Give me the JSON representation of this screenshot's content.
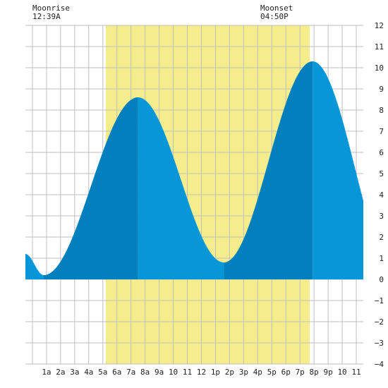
{
  "annotations": {
    "moonrise": {
      "label": "Moonrise",
      "time": "12:39A",
      "hour": 0.65
    },
    "moonset": {
      "label": "Moonset",
      "time": "04:50P",
      "hour": 16.83
    }
  },
  "chart_data": {
    "type": "area",
    "title": "",
    "xlabel": "",
    "ylabel": "",
    "xlim": [
      -0.5,
      23.5
    ],
    "ylim": [
      -4,
      12
    ],
    "grid": true,
    "x_tick_labels": [
      "1a",
      "2a",
      "3a",
      "4a",
      "5a",
      "6a",
      "7a",
      "8a",
      "9a",
      "10",
      "11",
      "12",
      "1p",
      "2p",
      "3p",
      "4p",
      "5p",
      "6p",
      "7p",
      "8p",
      "9p",
      "10",
      "11"
    ],
    "x_tick_hours": [
      1,
      2,
      3,
      4,
      5,
      6,
      7,
      8,
      9,
      10,
      11,
      12,
      13,
      14,
      15,
      16,
      17,
      18,
      19,
      20,
      21,
      22,
      23
    ],
    "y_ticks": [
      12,
      11,
      10,
      9,
      8,
      7,
      6,
      5,
      4,
      3,
      2,
      1,
      0,
      -1,
      -2,
      -3,
      -4
    ],
    "y_tick_labels": [
      "12",
      "11",
      "10",
      "9",
      "8",
      "7",
      "6",
      "5",
      "4",
      "3",
      "2",
      "1",
      "0",
      "−1",
      "−2",
      "−3",
      "−4"
    ],
    "daylight_hours": [
      5.2,
      19.7
    ],
    "tide_extremes": [
      {
        "hour": -0.5,
        "height": 1.2
      },
      {
        "hour": 0.8,
        "height": 0.2
      },
      {
        "hour": 7.5,
        "height": 8.6
      },
      {
        "hour": 13.6,
        "height": 0.8
      },
      {
        "hour": 19.9,
        "height": 10.3
      },
      {
        "hour": 26.0,
        "height": 0.0
      }
    ],
    "series": [
      {
        "values_hourly": [
          0.3,
          0.8,
          2.2,
          4.1,
          6.1,
          7.7,
          8.6,
          8.3,
          7.0,
          5.0,
          3.0,
          1.5,
          0.8,
          1.3,
          3.0,
          5.4,
          7.8,
          9.6,
          10.3,
          9.7,
          7.8,
          5.5,
          3.3
        ]
      }
    ],
    "colors": {
      "tide": "#0796d8",
      "tide_dark": "#0280bd",
      "daylight": "#f5ed8b",
      "grid": "#bfbfbf"
    }
  }
}
